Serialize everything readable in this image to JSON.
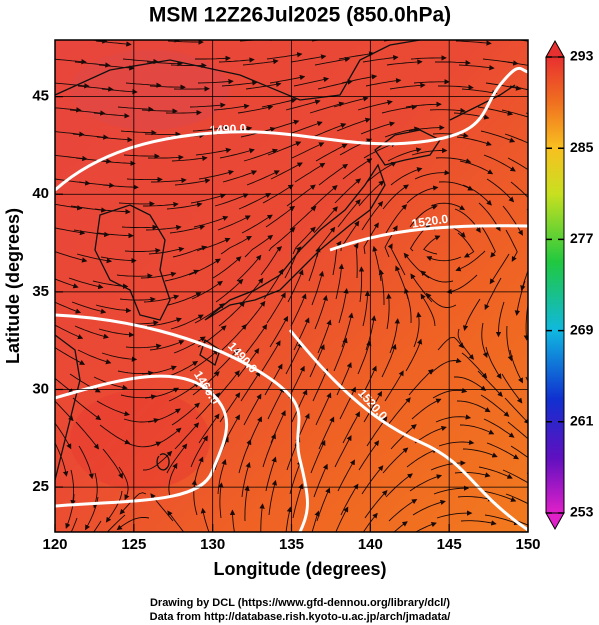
{
  "chart_data": {
    "type": "map",
    "title": "MSM 12Z26Jul2025 (850.0hPa)",
    "x_label": "Longitude (degrees)",
    "y_label": "Latitude  (degrees)",
    "xlim": [
      120,
      150
    ],
    "ylim": [
      22.7,
      47.9
    ],
    "xticks": [
      120,
      125,
      130,
      135,
      140,
      145,
      150
    ],
    "yticks": [
      25,
      30,
      35,
      40,
      45
    ],
    "grid": true,
    "colorbar": {
      "lim": [
        253,
        293
      ],
      "ticks": [
        253,
        261,
        269,
        277,
        285,
        293
      ]
    },
    "contour_labels": [
      "1490.0",
      "1520.0",
      "1490.0",
      "1460.0",
      "1520.0"
    ],
    "credits": [
      "Drawing by DCL (https://www.gfd-dennou.org/library/dcl/)",
      "Data from http://database.rish.kyoto-u.ac.jp/arch/jmadata/"
    ]
  }
}
